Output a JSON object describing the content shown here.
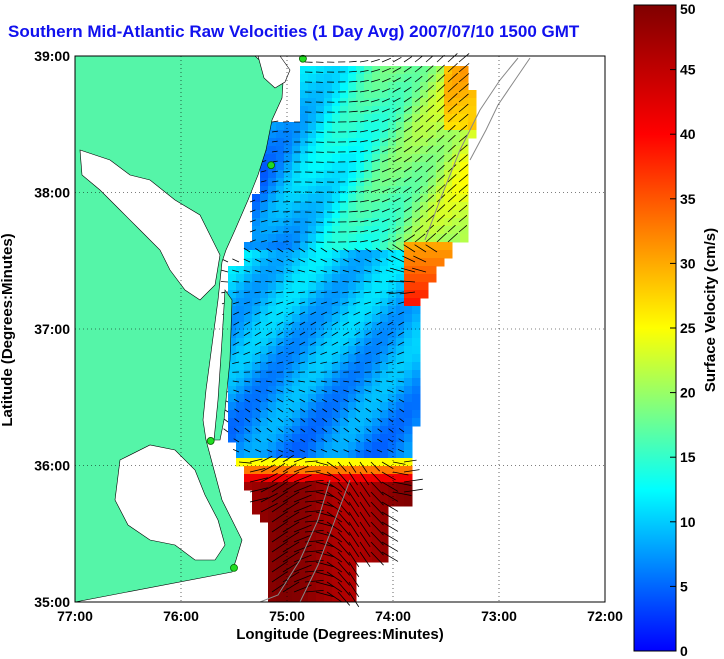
{
  "chart_data": {
    "type": "heatmap",
    "title": "Southern Mid-Atlantic Raw Velocities (1 Day Avg) 2007/07/10 1500 GMT",
    "xlabel": "Longitude (Degrees:Minutes)",
    "ylabel": "Latitude (Degrees:Minutes)",
    "colorbar_label": "Surface Velocity (cm/s)",
    "x_ticks": [
      "77:00",
      "76:00",
      "75:00",
      "74:00",
      "73:00",
      "72:00"
    ],
    "x_tick_values": [
      -77,
      -76,
      -75,
      -74,
      -73,
      -72
    ],
    "y_ticks": [
      "39:00",
      "38:00",
      "37:00",
      "36:00",
      "35:00"
    ],
    "y_tick_values": [
      39,
      38,
      37,
      36,
      35
    ],
    "colorbar_ticks": [
      0,
      5,
      10,
      15,
      20,
      25,
      30,
      35,
      40,
      45,
      50
    ],
    "xlim": [
      -77,
      -72
    ],
    "ylim": [
      35,
      39
    ],
    "clim": [
      0,
      50
    ],
    "grid": true,
    "colormap": [
      "#0000ff",
      "#00ffff",
      "#ffff00",
      "#ff0000",
      "#800000"
    ],
    "land_color": "#55f5a8",
    "vector_color": "#000000",
    "stations": [
      {
        "lon": -74.85,
        "lat": 38.98
      },
      {
        "lon": -75.15,
        "lat": 38.2
      },
      {
        "lon": -75.72,
        "lat": 36.18
      },
      {
        "lon": -75.5,
        "lat": 35.25
      }
    ]
  }
}
